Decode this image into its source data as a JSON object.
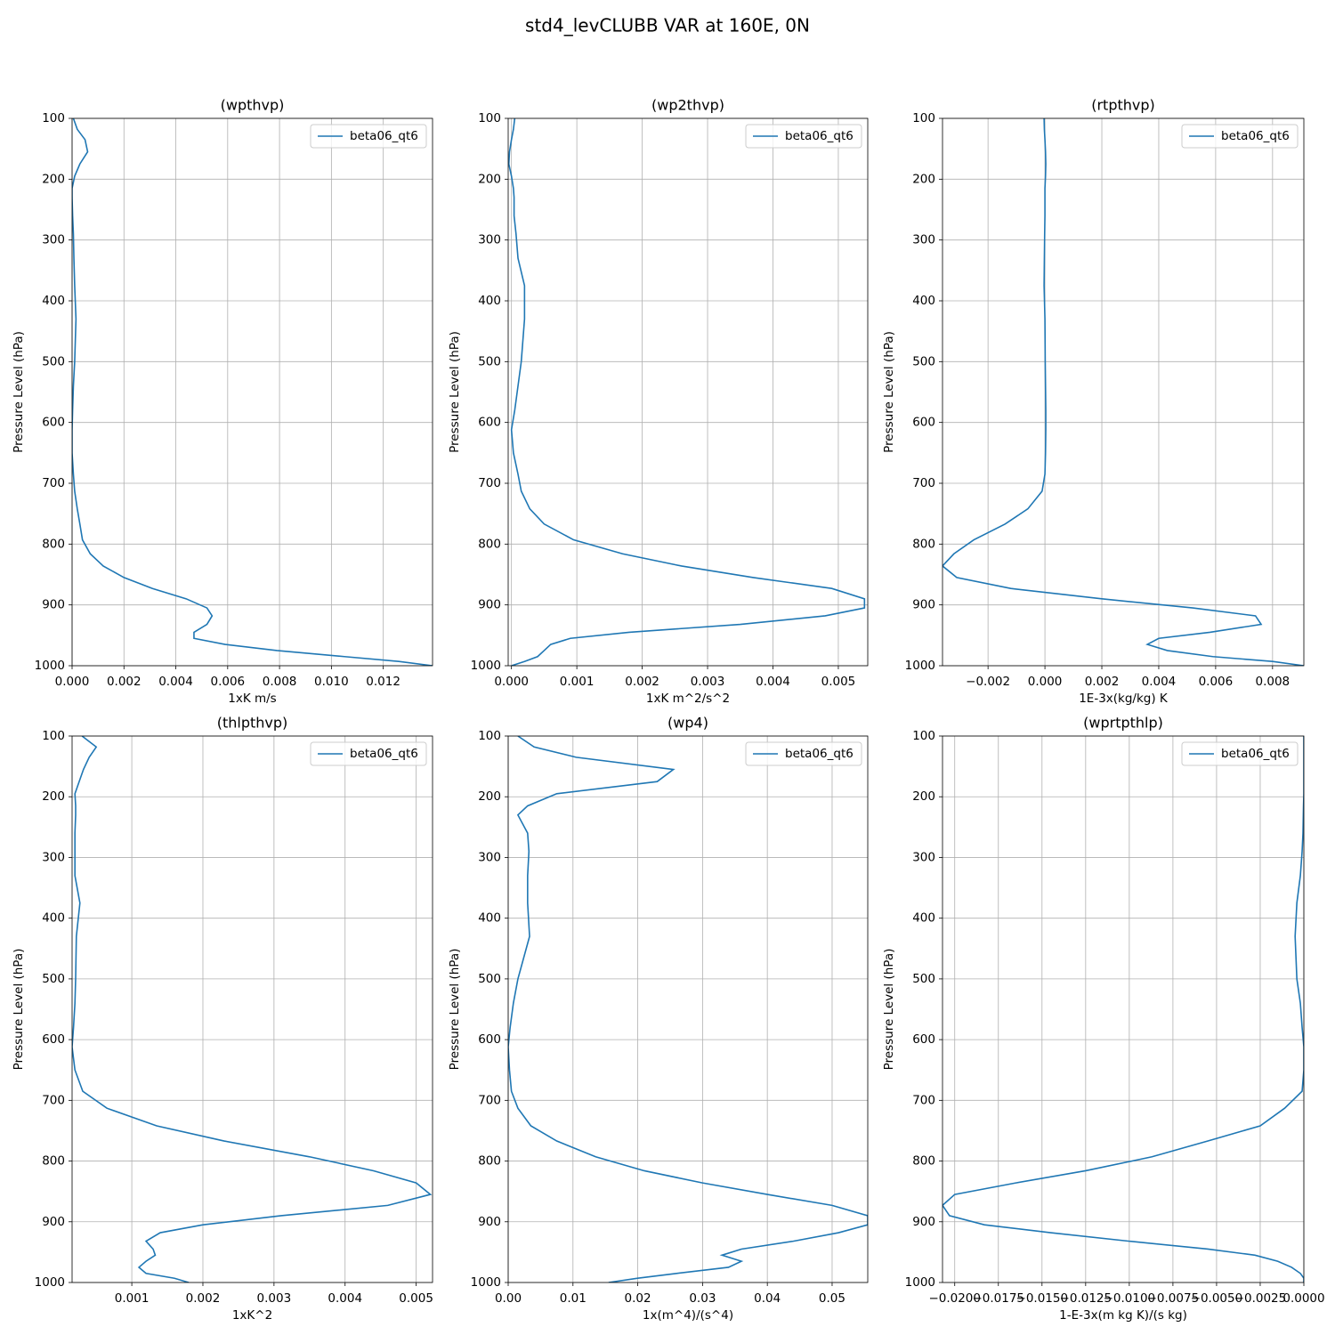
{
  "title": "std4_levCLUBB VAR at 160E, 0N",
  "chart_data": [
    {
      "type": "line",
      "title": "(wpthvp)",
      "xlabel": "1xK m/s",
      "ylabel": "Pressure Level (hPa)",
      "grid": true,
      "legend": "upper right",
      "y_inverted": true,
      "y": [
        100,
        118,
        135,
        155,
        175,
        195,
        215,
        230,
        260,
        290,
        330,
        375,
        430,
        500,
        540,
        580,
        612,
        650,
        685,
        713,
        742,
        767,
        793,
        816,
        836,
        855,
        873,
        890,
        905,
        918,
        932,
        945,
        955,
        965,
        975,
        985,
        993,
        1000
      ],
      "series": [
        {
          "name": "beta06_qt6",
          "color": "#1f77b4",
          "values": [
            5e-05,
            0.0002,
            0.0005,
            0.0006,
            0.0003,
            0.0001,
            0.0,
            0.0,
            2e-05,
            5e-05,
            7e-05,
            0.0001,
            0.00015,
            0.0001,
            5e-05,
            2e-05,
            0.0,
            0.0,
            5e-05,
            0.0001,
            0.0002,
            0.0003,
            0.0004,
            0.0007,
            0.0012,
            0.002,
            0.0031,
            0.0044,
            0.0052,
            0.0054,
            0.0052,
            0.0047,
            0.0047,
            0.0059,
            0.0079,
            0.0105,
            0.0126,
            0.0139
          ]
        }
      ],
      "xlim": [
        0,
        0.0139
      ],
      "xticks": [
        {
          "value": 0,
          "label": "0.000"
        },
        0.002,
        0.004,
        0.006,
        0.008,
        {
          "value": 0.01,
          "label": "0.010"
        },
        0.012
      ],
      "ylim": [
        100,
        1000
      ],
      "yticks": [
        100,
        200,
        300,
        400,
        500,
        600,
        700,
        800,
        900,
        1000
      ]
    },
    {
      "type": "line",
      "title": "(wp2thvp)",
      "xlabel": "1xK m^2/s^2",
      "ylabel": "Pressure Level (hPa)",
      "grid": true,
      "legend": "upper right",
      "y_inverted": true,
      "y": [
        100,
        118,
        135,
        155,
        175,
        195,
        215,
        230,
        260,
        290,
        330,
        375,
        430,
        500,
        540,
        580,
        612,
        650,
        685,
        713,
        742,
        767,
        793,
        816,
        836,
        855,
        873,
        890,
        905,
        918,
        932,
        945,
        955,
        965,
        975,
        985,
        993,
        1000
      ],
      "series": [
        {
          "name": "beta06_qt6",
          "color": "#1f77b4",
          "values": [
            5e-05,
            3e-05,
            0.0,
            -3e-05,
            -4e-05,
            0.0,
            3e-05,
            4e-05,
            4e-05,
            7e-05,
            0.0001,
            0.0002,
            0.0002,
            0.00015,
            0.0001,
            5e-05,
            0.0,
            3e-05,
            0.0001,
            0.00015,
            0.00028,
            0.0005,
            0.00095,
            0.0017,
            0.0026,
            0.0037,
            0.0049,
            0.0054,
            0.0054,
            0.0048,
            0.0035,
            0.0018,
            0.0009,
            0.0006,
            0.0005,
            0.0004,
            0.0002,
            0.0
          ]
        }
      ],
      "xlim": [
        -5e-05,
        0.00545
      ],
      "xticks": [
        {
          "value": 0,
          "label": "0.000"
        },
        0.001,
        0.002,
        0.003,
        0.004,
        0.005
      ],
      "ylim": [
        100,
        1000
      ],
      "yticks": [
        100,
        200,
        300,
        400,
        500,
        600,
        700,
        800,
        900,
        1000
      ]
    },
    {
      "type": "line",
      "title": "(rtpthvp)",
      "xlabel": "1E-3x(kg/kg) K",
      "ylabel": "Pressure Level (hPa)",
      "grid": true,
      "legend": "upper right",
      "y_inverted": true,
      "y": [
        100,
        118,
        135,
        155,
        175,
        195,
        215,
        230,
        260,
        290,
        330,
        375,
        430,
        500,
        540,
        580,
        612,
        650,
        685,
        713,
        742,
        767,
        793,
        816,
        836,
        855,
        873,
        890,
        905,
        918,
        932,
        945,
        955,
        965,
        975,
        985,
        993,
        1000
      ],
      "series": [
        {
          "name": "beta06_qt6",
          "color": "#1f77b4",
          "values": [
            -3e-05,
            -2e-05,
            0.0,
            2e-05,
            3e-05,
            2e-05,
            0.0,
            0.0,
            0.0,
            -1e-05,
            -2e-05,
            -3e-05,
            0.0,
            1e-05,
            2e-05,
            3e-05,
            3e-05,
            2e-05,
            0.0,
            -0.0001,
            -0.0006,
            -0.0014,
            -0.0025,
            -0.0032,
            -0.0036,
            -0.0031,
            -0.0012,
            0.002,
            0.0052,
            0.0074,
            0.0076,
            0.0058,
            0.004,
            0.0036,
            0.0043,
            0.0059,
            0.008,
            0.0091
          ]
        }
      ],
      "xlim": [
        -0.0036,
        0.0091
      ],
      "xticks": [
        {
          "value": -0.002,
          "label": "−0.002"
        },
        {
          "value": 0,
          "label": "0.000"
        },
        0.002,
        0.004,
        0.006,
        0.008
      ],
      "ylim": [
        100,
        1000
      ],
      "yticks": [
        100,
        200,
        300,
        400,
        500,
        600,
        700,
        800,
        900,
        1000
      ]
    },
    {
      "type": "line",
      "title": "(thlpthvp)",
      "xlabel": "1xK^2",
      "ylabel": "Pressure Level (hPa)",
      "grid": true,
      "legend": "upper right",
      "y_inverted": true,
      "y": [
        100,
        118,
        135,
        155,
        175,
        195,
        215,
        230,
        260,
        290,
        330,
        375,
        430,
        500,
        540,
        580,
        612,
        650,
        685,
        713,
        742,
        767,
        793,
        816,
        836,
        855,
        873,
        890,
        905,
        918,
        932,
        945,
        955,
        965,
        975,
        985,
        993,
        1000
      ],
      "series": [
        {
          "name": "beta06_qt6",
          "color": "#1f77b4",
          "values": [
            0.0003,
            0.0005,
            0.0004,
            0.00032,
            0.00026,
            0.0002,
            0.00021,
            0.00021,
            0.0002,
            0.0002,
            0.0002,
            0.00027,
            0.00022,
            0.00021,
            0.0002,
            0.00018,
            0.00016,
            0.0002,
            0.00031,
            0.00065,
            0.00135,
            0.0023,
            0.0035,
            0.0044,
            0.005,
            0.0052,
            0.0046,
            0.0031,
            0.002,
            0.0014,
            0.0012,
            0.0013,
            0.00133,
            0.0012,
            0.0011,
            0.0012,
            0.0016,
            0.0018
          ]
        }
      ],
      "xlim": [
        0.00016,
        0.00523
      ],
      "xticks": [
        0.001,
        0.002,
        0.003,
        0.004,
        0.005
      ],
      "ylim": [
        100,
        1000
      ],
      "yticks": [
        100,
        200,
        300,
        400,
        500,
        600,
        700,
        800,
        900,
        1000
      ]
    },
    {
      "type": "line",
      "title": "(wp4)",
      "xlabel": "1x(m^4)/(s^4)",
      "ylabel": "Pressure Level (hPa)",
      "grid": true,
      "legend": "upper right",
      "y_inverted": true,
      "y": [
        100,
        118,
        135,
        155,
        175,
        195,
        215,
        230,
        260,
        290,
        330,
        375,
        430,
        500,
        540,
        580,
        612,
        650,
        685,
        713,
        742,
        767,
        793,
        816,
        836,
        855,
        873,
        890,
        905,
        918,
        932,
        945,
        955,
        965,
        975,
        985,
        993,
        1000
      ],
      "series": [
        {
          "name": "beta06_qt6",
          "color": "#1f77b4",
          "values": [
            0.0015,
            0.004,
            0.0105,
            0.0255,
            0.023,
            0.0075,
            0.003,
            0.0015,
            0.003,
            0.0032,
            0.003,
            0.003,
            0.0033,
            0.0015,
            0.0008,
            0.0003,
            0.0,
            0.0002,
            0.0005,
            0.0015,
            0.0035,
            0.0075,
            0.0135,
            0.021,
            0.03,
            0.04,
            0.05,
            0.0555,
            0.0555,
            0.051,
            0.044,
            0.036,
            0.033,
            0.036,
            0.034,
            0.026,
            0.02,
            0.0155
          ]
        }
      ],
      "xlim": [
        0,
        0.0555
      ],
      "xticks": [
        {
          "value": 0,
          "label": "0.00"
        },
        0.01,
        0.02,
        0.03,
        0.04,
        0.05
      ],
      "ylim": [
        100,
        1000
      ],
      "yticks": [
        100,
        200,
        300,
        400,
        500,
        600,
        700,
        800,
        900,
        1000
      ]
    },
    {
      "type": "line",
      "title": "(wprtpthlp)",
      "xlabel": "1-E-3x(m kg K)/(s kg)",
      "ylabel": "Pressure Level (hPa)",
      "grid": true,
      "legend": "upper right",
      "y_inverted": true,
      "y": [
        100,
        118,
        135,
        155,
        175,
        195,
        215,
        230,
        260,
        290,
        330,
        375,
        430,
        500,
        540,
        580,
        612,
        650,
        685,
        713,
        742,
        767,
        793,
        816,
        836,
        855,
        873,
        890,
        905,
        918,
        932,
        945,
        955,
        965,
        975,
        985,
        993,
        1000
      ],
      "series": [
        {
          "name": "beta06_qt6",
          "color": "#1f77b4",
          "values": [
            0.0,
            0.0,
            0.0,
            0.0,
            0.0,
            0.0,
            -2e-05,
            -3e-05,
            -5e-05,
            -0.0001,
            -0.0002,
            -0.0004,
            -0.0005,
            -0.0004,
            -0.0002,
            -0.0001,
            0.0,
            0.0,
            -0.0001,
            -0.0011,
            -0.0025,
            -0.0055,
            -0.0087,
            -0.0125,
            -0.0165,
            -0.02,
            -0.0207,
            -0.0203,
            -0.0183,
            -0.0145,
            -0.01,
            -0.0055,
            -0.0028,
            -0.0015,
            -0.0007,
            -0.0002,
            0.0,
            0.0
          ]
        }
      ],
      "xlim": [
        -0.0207,
        0
      ],
      "xticks": [
        {
          "value": -0.02,
          "label": "−0.0200"
        },
        {
          "value": -0.0175,
          "label": "−0.0175"
        },
        {
          "value": -0.015,
          "label": "−0.0150"
        },
        {
          "value": -0.0125,
          "label": "−0.0125"
        },
        {
          "value": -0.01,
          "label": "−0.0100"
        },
        {
          "value": -0.0075,
          "label": "−0.0075"
        },
        {
          "value": -0.005,
          "label": "−0.0050"
        },
        {
          "value": -0.0025,
          "label": "−0.0025"
        },
        {
          "value": 0,
          "label": "0.0000"
        }
      ],
      "ylim": [
        100,
        1000
      ],
      "yticks": [
        100,
        200,
        300,
        400,
        500,
        600,
        700,
        800,
        900,
        1000
      ]
    }
  ]
}
